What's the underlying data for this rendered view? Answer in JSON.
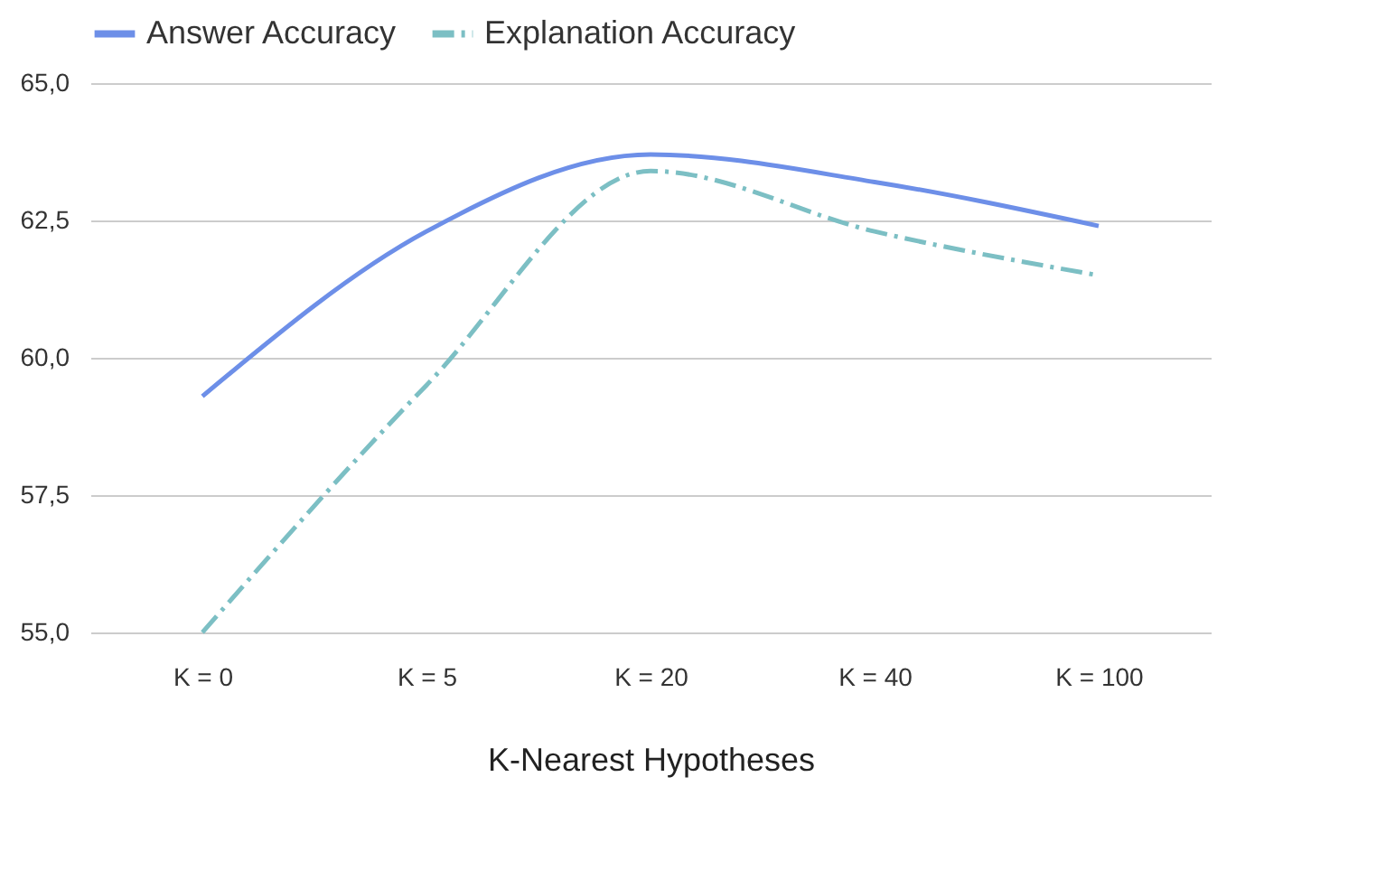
{
  "chart_data": {
    "type": "line",
    "xlabel": "K-Nearest Hypotheses",
    "categories": [
      "K = 0",
      "K = 5",
      "K = 20",
      "K = 40",
      "K = 100"
    ],
    "series": [
      {
        "name": "Answer Accuracy",
        "color": "#6d8fe8",
        "values": [
          59.3,
          62.3,
          63.7,
          63.2,
          62.4
        ],
        "line_style": "solid"
      },
      {
        "name": "Explanation Accuracy",
        "color": "#7cbfc4",
        "values": [
          55.0,
          59.5,
          63.4,
          62.3,
          61.5
        ],
        "line_style": "dashed"
      }
    ],
    "ylim": [
      55,
      65
    ],
    "yticks": [
      {
        "value": 55,
        "label": "55,0"
      },
      {
        "value": 57.5,
        "label": "57,5"
      },
      {
        "value": 60,
        "label": "60,0"
      },
      {
        "value": 62.5,
        "label": "62,5"
      },
      {
        "value": 65,
        "label": "65,0"
      }
    ],
    "grid": "y",
    "legend": "top",
    "marker": "none"
  }
}
